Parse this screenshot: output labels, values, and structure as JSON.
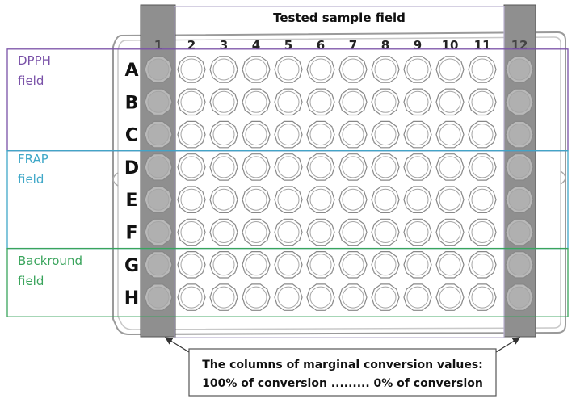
{
  "plate": {
    "title": "Tested sample field",
    "rows": [
      "A",
      "B",
      "C",
      "D",
      "E",
      "F",
      "G",
      "H"
    ],
    "columns": [
      "1",
      "2",
      "3",
      "4",
      "5",
      "6",
      "7",
      "8",
      "9",
      "10",
      "11",
      "12"
    ],
    "shaded_columns": [
      "1",
      "12"
    ]
  },
  "fields": [
    {
      "line1": "DPPH",
      "line2": "field",
      "rows": [
        "A",
        "B",
        "C"
      ],
      "color": "#7a52a8"
    },
    {
      "line1": "FRAP",
      "line2": "field",
      "rows": [
        "D",
        "E",
        "F"
      ],
      "color": "#40a8c8"
    },
    {
      "line1": "Backround",
      "line2": "field",
      "rows": [
        "G",
        "H"
      ],
      "color": "#3aa45c"
    }
  ],
  "note": {
    "line1": "The columns of marginal conversion values:",
    "line2": "100% of conversion ......... 0% of conversion"
  },
  "colors": {
    "well_stroke": "#888888",
    "shaded_fill": "#8f8f8f",
    "shaded_well": "#b9b9b9",
    "plate_outline": "#9a9a9a"
  }
}
